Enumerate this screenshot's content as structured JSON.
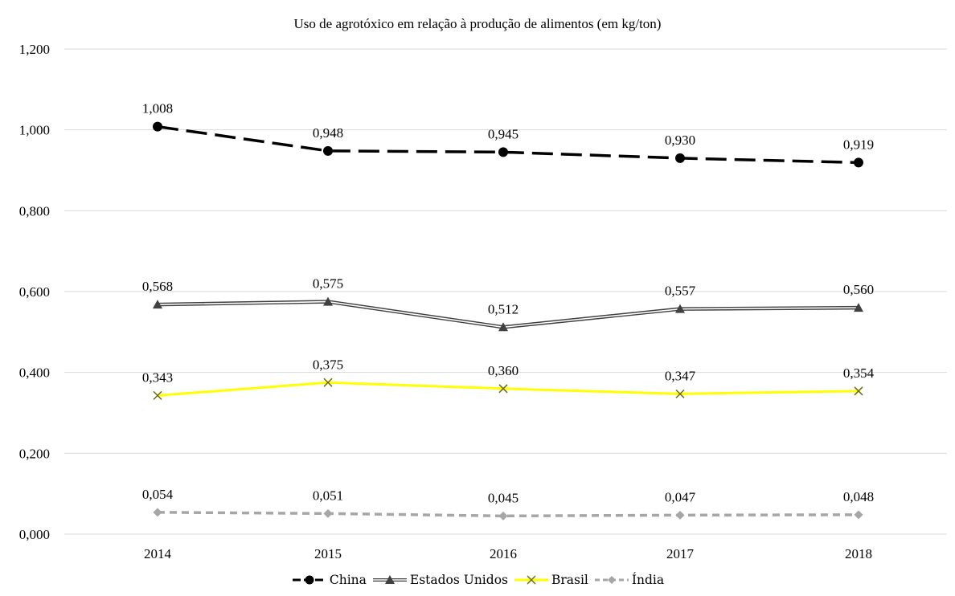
{
  "chart_data": {
    "type": "line",
    "title": "Uso de agrotóxico em relação à produção de alimentos (em kg/ton)",
    "xlabel": "",
    "ylabel": "",
    "categories": [
      "2014",
      "2015",
      "2016",
      "2017",
      "2018"
    ],
    "ylim": [
      0,
      1.2
    ],
    "yticks": [
      0,
      0.2,
      0.4,
      0.6,
      0.8,
      1.0,
      1.2
    ],
    "ytick_labels": [
      "0,000",
      "0,200",
      "0,400",
      "0,600",
      "0,800",
      "1,000",
      "1,200"
    ],
    "grid": true,
    "legend_position": "bottom-center",
    "series": [
      {
        "name": "China",
        "values": [
          1.008,
          0.948,
          0.945,
          0.93,
          0.919
        ],
        "labels": [
          "1,008",
          "0,948",
          "0,945",
          "0,930",
          "0,919"
        ],
        "color": "#000000",
        "line_style": "dashed",
        "marker": "circle"
      },
      {
        "name": "Estados Unidos",
        "values": [
          0.568,
          0.575,
          0.512,
          0.557,
          0.56
        ],
        "labels": [
          "0,568",
          "0,575",
          "0,512",
          "0,557",
          "0,560"
        ],
        "color": "#404040",
        "line_style": "double",
        "marker": "triangle"
      },
      {
        "name": "Brasil",
        "values": [
          0.343,
          0.375,
          0.36,
          0.347,
          0.354
        ],
        "labels": [
          "0,343",
          "0,375",
          "0,360",
          "0,347",
          "0,354"
        ],
        "color": "#FFFF00",
        "line_style": "solid",
        "marker": "x"
      },
      {
        "name": "Índia",
        "values": [
          0.054,
          0.051,
          0.045,
          0.047,
          0.048
        ],
        "labels": [
          "0,054",
          "0,051",
          "0,045",
          "0,047",
          "0,048"
        ],
        "color": "#A6A6A6",
        "line_style": "dashed",
        "marker": "diamond"
      }
    ]
  }
}
